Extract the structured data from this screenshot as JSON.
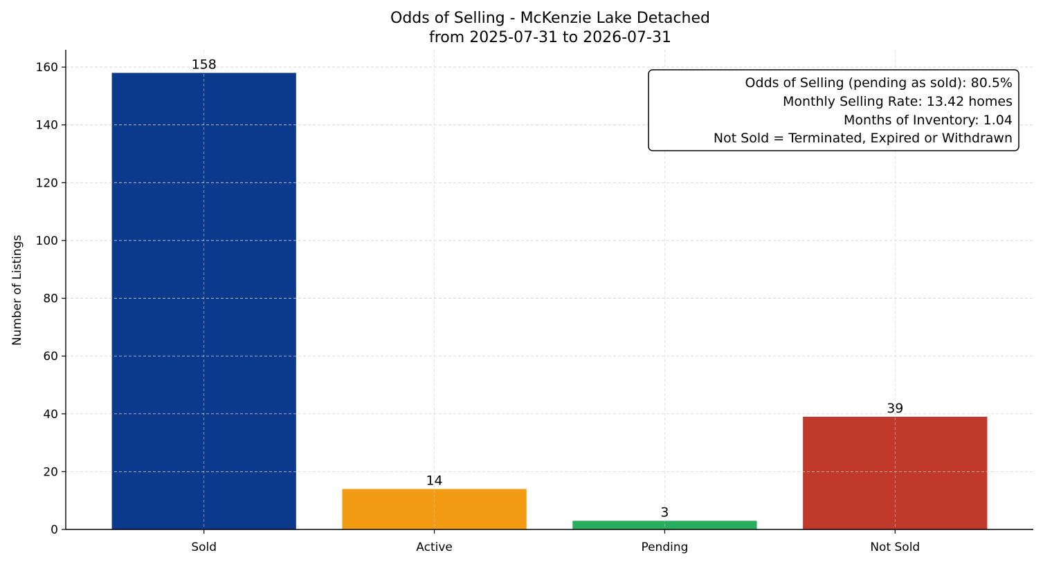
{
  "chart_data": {
    "type": "bar",
    "title_line1": "Odds of Selling - McKenzie Lake Detached",
    "title_line2": "from 2025-07-31 to 2026-07-31",
    "xlabel": "",
    "ylabel": "Number of Listings",
    "categories": [
      "Sold",
      "Active",
      "Pending",
      "Not Sold"
    ],
    "values": [
      158,
      14,
      3,
      39
    ],
    "colors": [
      "#0b3a8c",
      "#f29b13",
      "#27ae60",
      "#c0392b"
    ],
    "ylim": [
      0,
      166
    ],
    "yticks": [
      0,
      20,
      40,
      60,
      80,
      100,
      120,
      140,
      160
    ],
    "grid": true,
    "annotation_position": "top-right",
    "annotation_lines": [
      "Odds of Selling (pending as sold): 80.5%",
      "Monthly Selling Rate: 13.42 homes",
      "Months of Inventory: 1.04",
      "Not Sold = Terminated, Expired or Withdrawn"
    ]
  }
}
